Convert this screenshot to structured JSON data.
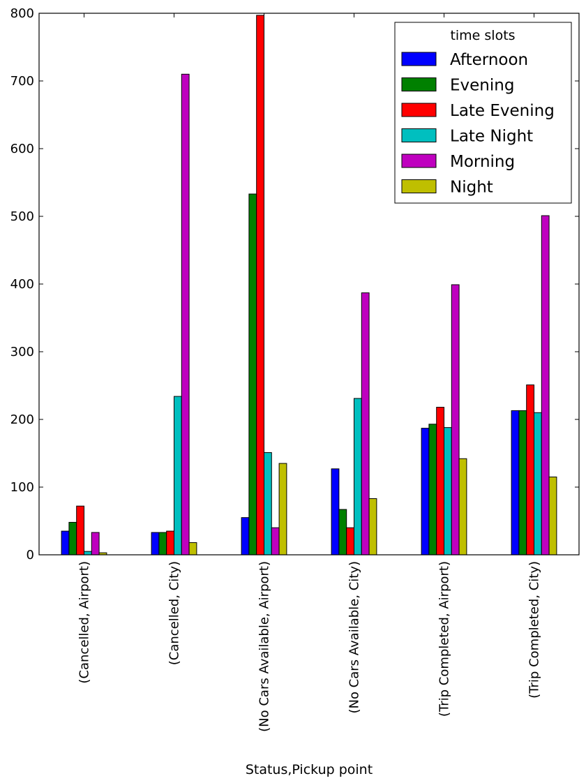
{
  "chart_data": {
    "type": "bar",
    "xlabel": "Status,Pickup point",
    "ylabel": "",
    "ylim": [
      0,
      800
    ],
    "yticks": [
      0,
      100,
      200,
      300,
      400,
      500,
      600,
      700,
      800
    ],
    "grid": false,
    "legend": {
      "title": "time slots",
      "placement": "top-right"
    },
    "categories": [
      "(Cancelled, Airport)",
      "(Cancelled, City)",
      "(No Cars Available, Airport)",
      "(No Cars Available, City)",
      "(Trip Completed, Airport)",
      "(Trip Completed, City)"
    ],
    "series": [
      {
        "name": "Afternoon",
        "color": "#0000ff",
        "values": [
          35,
          33,
          55,
          127,
          187,
          213
        ]
      },
      {
        "name": "Evening",
        "color": "#008000",
        "values": [
          48,
          33,
          533,
          67,
          193,
          213
        ]
      },
      {
        "name": "Late Evening",
        "color": "#ff0000",
        "values": [
          72,
          35,
          797,
          40,
          218,
          251
        ]
      },
      {
        "name": "Late Night",
        "color": "#00bfbf",
        "values": [
          5,
          234,
          151,
          231,
          188,
          210
        ]
      },
      {
        "name": "Morning",
        "color": "#bf00bf",
        "values": [
          33,
          710,
          40,
          387,
          399,
          501
        ]
      },
      {
        "name": "Night",
        "color": "#bfbf00",
        "values": [
          3,
          18,
          135,
          83,
          142,
          115
        ]
      }
    ]
  }
}
